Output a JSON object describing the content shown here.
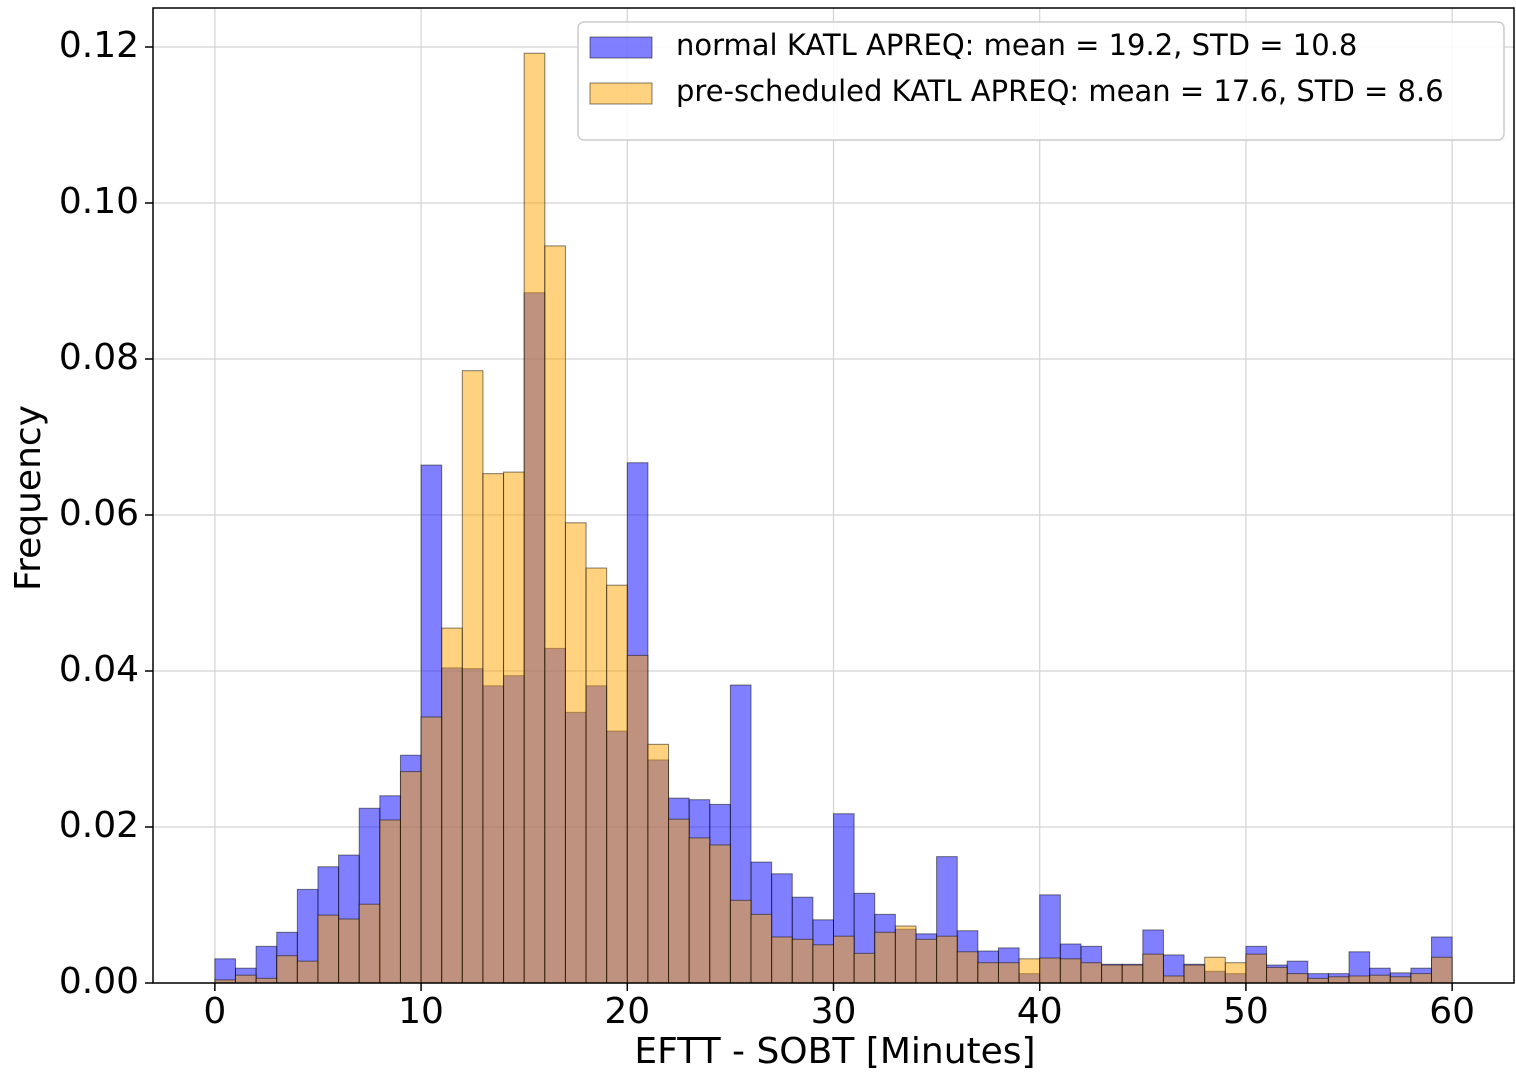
{
  "chart_data": {
    "type": "histogram",
    "xlabel": "EFTT - SOBT [Minutes]",
    "ylabel": "Frequency",
    "bins": [
      0,
      1,
      2,
      3,
      4,
      5,
      6,
      7,
      8,
      9,
      10,
      11,
      12,
      13,
      14,
      15,
      16,
      17,
      18,
      19,
      20,
      21,
      22,
      23,
      24,
      25,
      26,
      27,
      28,
      29,
      30,
      31,
      32,
      33,
      34,
      35,
      36,
      37,
      38,
      39,
      40,
      41,
      42,
      43,
      44,
      45,
      46,
      47,
      48,
      49,
      50,
      51,
      52,
      53,
      54,
      55,
      56,
      57,
      58,
      59,
      60
    ],
    "series": [
      {
        "name": "normal KATL APREQ: mean = 19.2, STD = 10.8",
        "color": "#0000ff",
        "values": [
          0.0031,
          0.0019,
          0.0047,
          0.0065,
          0.012,
          0.0149,
          0.0164,
          0.0224,
          0.024,
          0.0292,
          0.0664,
          0.0404,
          0.0403,
          0.0381,
          0.0394,
          0.0885,
          0.0429,
          0.0347,
          0.0381,
          0.0323,
          0.0667,
          0.0286,
          0.0237,
          0.0235,
          0.0229,
          0.0382,
          0.0155,
          0.014,
          0.011,
          0.0081,
          0.0217,
          0.0115,
          0.0088,
          0.0069,
          0.0063,
          0.0162,
          0.0067,
          0.0041,
          0.0045,
          0.0012,
          0.0113,
          0.005,
          0.0047,
          0.0024,
          0.0024,
          0.0068,
          0.0036,
          0.0024,
          0.0015,
          0.0012,
          0.0047,
          0.0023,
          0.0028,
          0.0012,
          0.0012,
          0.004,
          0.0019,
          0.0013,
          0.0019,
          0.0059
        ]
      },
      {
        "name": "pre-scheduled KATL APREQ: mean = 17.6, STD = 8.6",
        "color": "#ffa500",
        "values": [
          0.0004,
          0.001,
          0.0006,
          0.0035,
          0.0028,
          0.0087,
          0.0082,
          0.0101,
          0.0209,
          0.0271,
          0.0341,
          0.0455,
          0.0785,
          0.0653,
          0.0655,
          0.1192,
          0.0945,
          0.059,
          0.0532,
          0.051,
          0.042,
          0.0306,
          0.021,
          0.0186,
          0.0177,
          0.0106,
          0.0088,
          0.0059,
          0.0056,
          0.0049,
          0.006,
          0.0038,
          0.0065,
          0.0073,
          0.0056,
          0.006,
          0.004,
          0.0026,
          0.0026,
          0.0031,
          0.0032,
          0.0031,
          0.0026,
          0.0023,
          0.0023,
          0.0037,
          0.0009,
          0.0023,
          0.0033,
          0.0026,
          0.0037,
          0.002,
          0.0012,
          0.0006,
          0.0008,
          0.0009,
          0.001,
          0.0008,
          0.0012,
          0.0033
        ]
      }
    ],
    "xlim": [
      -3,
      63
    ],
    "ylim": [
      0,
      0.125
    ],
    "xticks": [
      0,
      10,
      20,
      30,
      40,
      50,
      60
    ],
    "yticks": [
      {
        "value": 0,
        "label": "0.00"
      },
      0.02,
      0.04,
      0.06,
      0.08,
      {
        "value": 0.1,
        "label": "0.10"
      },
      0.12
    ],
    "grid": true,
    "legend": "upper right",
    "alpha": 0.5
  }
}
